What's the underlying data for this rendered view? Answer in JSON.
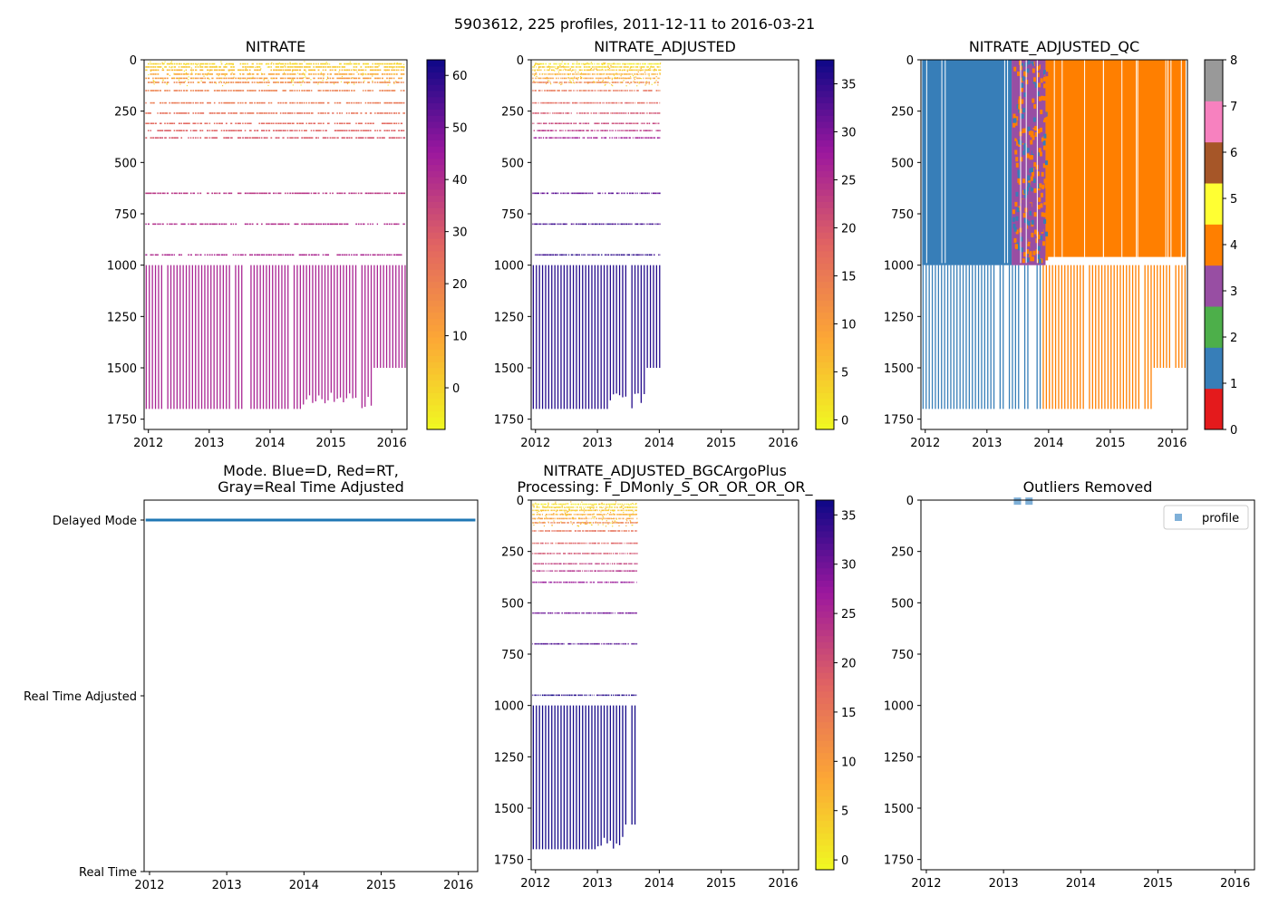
{
  "figure": {
    "suptitle": "5903612, 225 profiles, 2011-12-11 to 2016-03-21"
  },
  "colors": {
    "nitrate_low": "#f7e225",
    "nitrate_mid": "#e3457a",
    "nitrate_high": "#9c1fa6",
    "nitrate_max": "#0d0887",
    "qc_blue": "#3a7ab8",
    "qc_orange": "#ff7f00",
    "qc_purple": "#984ea3",
    "mode_line": "#1f77b4",
    "outlier": "#7fb0d8"
  },
  "chart_data": [
    {
      "id": "nitrate",
      "type": "heatmap",
      "title": "NITRATE",
      "xlabel": "",
      "ylabel": "",
      "xlim": [
        2011.93,
        2016.25
      ],
      "ylim": [
        1800,
        0
      ],
      "x_ticks": [
        "2012",
        "2013",
        "2014",
        "2015",
        "2016"
      ],
      "y_ticks": [
        0,
        250,
        500,
        750,
        1000,
        1250,
        1500,
        1750
      ],
      "colormap": "plasma_r",
      "colorbar": {
        "range": [
          -8,
          63
        ],
        "ticks": [
          0,
          10,
          20,
          30,
          40,
          50,
          60
        ]
      },
      "data_time_range": [
        2011.95,
        2016.22
      ],
      "shallow_bands": [
        {
          "depth": 20,
          "value": 0
        },
        {
          "depth": 35,
          "value": 2
        },
        {
          "depth": 50,
          "value": 6
        },
        {
          "depth": 70,
          "value": 10
        },
        {
          "depth": 90,
          "value": 14
        },
        {
          "depth": 110,
          "value": 18
        },
        {
          "depth": 150,
          "value": 20
        },
        {
          "depth": 210,
          "value": 22
        },
        {
          "depth": 260,
          "value": 24
        },
        {
          "depth": 310,
          "value": 26
        },
        {
          "depth": 345,
          "value": 28
        },
        {
          "depth": 380,
          "value": 30
        },
        {
          "depth": 650,
          "value": 38
        },
        {
          "depth": 800,
          "value": 40
        },
        {
          "depth": 950,
          "value": 41
        }
      ],
      "deep_profiles": {
        "top": 1000,
        "bottom": 1700,
        "value": 42,
        "last_bottom": 1500
      }
    },
    {
      "id": "nitrate_adjusted",
      "type": "heatmap",
      "title": "NITRATE_ADJUSTED",
      "xlim": [
        2011.93,
        2016.25
      ],
      "ylim": [
        1800,
        0
      ],
      "x_ticks": [
        "2012",
        "2013",
        "2014",
        "2015",
        "2016"
      ],
      "y_ticks": [
        0,
        250,
        500,
        750,
        1000,
        1250,
        1500,
        1750
      ],
      "colormap": "plasma_r",
      "colorbar": {
        "range": [
          -1,
          37.5
        ],
        "ticks": [
          0,
          5,
          10,
          15,
          20,
          25,
          30,
          35
        ]
      },
      "data_time_range": [
        2011.95,
        2014.02
      ],
      "shallow_bands": [
        {
          "depth": 20,
          "value": 1
        },
        {
          "depth": 35,
          "value": 3
        },
        {
          "depth": 50,
          "value": 5
        },
        {
          "depth": 70,
          "value": 8
        },
        {
          "depth": 90,
          "value": 10
        },
        {
          "depth": 110,
          "value": 14
        },
        {
          "depth": 150,
          "value": 16
        },
        {
          "depth": 210,
          "value": 18
        },
        {
          "depth": 260,
          "value": 20
        },
        {
          "depth": 310,
          "value": 22
        },
        {
          "depth": 345,
          "value": 24
        },
        {
          "depth": 380,
          "value": 27
        },
        {
          "depth": 650,
          "value": 32
        },
        {
          "depth": 800,
          "value": 34
        },
        {
          "depth": 950,
          "value": 35
        }
      ],
      "deep_profiles": {
        "top": 1000,
        "bottom": 1700,
        "value": 36,
        "last_bottom": 1500
      }
    },
    {
      "id": "nitrate_adjusted_qc",
      "type": "heatmap",
      "title": "NITRATE_ADJUSTED_QC",
      "xlim": [
        2011.93,
        2016.25
      ],
      "ylim": [
        1800,
        0
      ],
      "x_ticks": [
        "2012",
        "2013",
        "2014",
        "2015",
        "2016"
      ],
      "y_ticks": [
        0,
        250,
        500,
        750,
        1000,
        1250,
        1500,
        1750
      ],
      "colormap": "Set1 (categorical QC flags)",
      "colorbar": {
        "range": [
          0,
          8
        ],
        "ticks": [
          0,
          1,
          2,
          3,
          4,
          5,
          6,
          7,
          8
        ],
        "segments": [
          "#e41a1c",
          "#377eb8",
          "#4daf4a",
          "#984ea3",
          "#ff7f00",
          "#ffff33",
          "#a65628",
          "#f781bf",
          "#999999"
        ]
      },
      "regions": [
        {
          "flag": 1,
          "from": 2011.95,
          "to": 2013.4,
          "depth_top": 0,
          "depth_bottom": 1000
        },
        {
          "flag": 3,
          "from": 2013.4,
          "to": 2013.95,
          "depth_top": 0,
          "depth_bottom": 1000
        },
        {
          "flag": 4,
          "from": 2013.95,
          "to": 2016.22,
          "depth_top": 0,
          "depth_bottom": 960
        }
      ],
      "deep_profiles": {
        "top": 1000,
        "bottom": 1700,
        "last_bottom": 1500
      }
    },
    {
      "id": "mode",
      "type": "line",
      "title": "Mode. Blue=D, Red=RT,",
      "title_line2": "Gray=Real Time Adjusted",
      "xlim": [
        2011.93,
        2016.25
      ],
      "x_ticks": [
        "2012",
        "2013",
        "2014",
        "2015",
        "2016"
      ],
      "y_categories": [
        "Delayed Mode",
        "Real Time Adjusted",
        "Real Time"
      ],
      "series": [
        {
          "name": "mode",
          "from": 2011.95,
          "to": 2016.22,
          "value": "Delayed Mode"
        }
      ]
    },
    {
      "id": "bgcargoplus",
      "type": "heatmap",
      "title": "NITRATE_ADJUSTED_BGCArgoPlus",
      "title_line2": "Processing: F_DMonly_S_OR_OR_OR_OR_",
      "xlim": [
        2011.93,
        2016.25
      ],
      "ylim": [
        1800,
        0
      ],
      "x_ticks": [
        "2012",
        "2013",
        "2014",
        "2015",
        "2016"
      ],
      "y_ticks": [
        0,
        250,
        500,
        750,
        1000,
        1250,
        1500,
        1750
      ],
      "colormap": "plasma_r",
      "colorbar": {
        "range": [
          -1,
          36.5
        ],
        "ticks": [
          0,
          5,
          10,
          15,
          20,
          25,
          30,
          35
        ]
      },
      "data_time_range": [
        2011.95,
        2013.65
      ],
      "shallow_bands": [
        {
          "depth": 20,
          "value": 1
        },
        {
          "depth": 35,
          "value": 3
        },
        {
          "depth": 50,
          "value": 5
        },
        {
          "depth": 70,
          "value": 8
        },
        {
          "depth": 90,
          "value": 10
        },
        {
          "depth": 110,
          "value": 14
        },
        {
          "depth": 150,
          "value": 16
        },
        {
          "depth": 210,
          "value": 18
        },
        {
          "depth": 260,
          "value": 20
        },
        {
          "depth": 310,
          "value": 22
        },
        {
          "depth": 345,
          "value": 24
        },
        {
          "depth": 400,
          "value": 27
        },
        {
          "depth": 550,
          "value": 30
        },
        {
          "depth": 700,
          "value": 32
        },
        {
          "depth": 950,
          "value": 35
        }
      ],
      "deep_profiles": {
        "top": 1000,
        "bottom": 1700,
        "value": 36,
        "last_bottom": 1580
      }
    },
    {
      "id": "outliers",
      "type": "scatter",
      "title": "Outliers Removed",
      "xlim": [
        2011.93,
        2016.25
      ],
      "ylim": [
        1800,
        0
      ],
      "x_ticks": [
        "2012",
        "2013",
        "2014",
        "2015",
        "2016"
      ],
      "y_ticks": [
        0,
        250,
        500,
        750,
        1000,
        1250,
        1500,
        1750
      ],
      "legend": {
        "label": "profile",
        "position": "top-right"
      },
      "points": [
        {
          "x": 2013.18,
          "y": 5
        },
        {
          "x": 2013.33,
          "y": 5
        }
      ]
    }
  ]
}
